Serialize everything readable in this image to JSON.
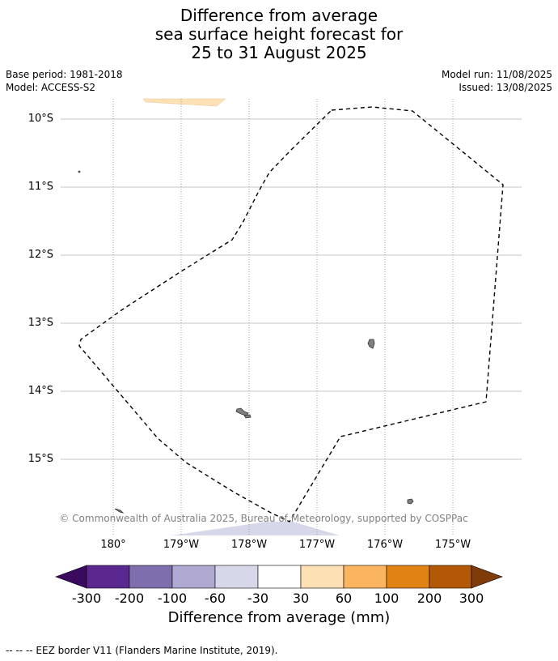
{
  "header": {
    "title_lines": [
      "Difference from average",
      "sea surface height forecast for",
      "25 to 31 August 2025"
    ],
    "base_period": "Base period: 1981-2018",
    "model": "Model: ACCESS-S2",
    "model_run": "Model run: 11/08/2025",
    "issued": "Issued: 13/08/2025"
  },
  "map": {
    "lat_labels": [
      "10°S",
      "11°S",
      "12°S",
      "13°S",
      "14°S",
      "15°S"
    ],
    "lon_labels": [
      "180°",
      "179°W",
      "178°W",
      "177°W",
      "176°W",
      "175°W"
    ],
    "copyright": "© Commonwealth of Australia 2025, Bureau of Meteorology, supported by COSPPac",
    "colors": {
      "anomaly_30_60": "#fde0b3",
      "anomaly_neg30_neg60": "#d7d7ea",
      "land": "#808080",
      "graticule": "#b0b0b0",
      "eez_border": "#000000"
    }
  },
  "colorbar": {
    "labels": [
      "-300",
      "-200",
      "-100",
      "-60",
      "-30",
      "30",
      "60",
      "100",
      "200",
      "300"
    ],
    "colors": [
      "#3a0a5e",
      "#5b2890",
      "#7f6ead",
      "#b0a9d2",
      "#d7d7ea",
      "#ffffff",
      "#fde0b3",
      "#fbb560",
      "#e08214",
      "#b35806",
      "#7f3b08"
    ],
    "title": "Difference from average (mm)"
  },
  "footnote": "-- -- -- EEZ border V11 (Flanders Marine Institute, 2019)."
}
